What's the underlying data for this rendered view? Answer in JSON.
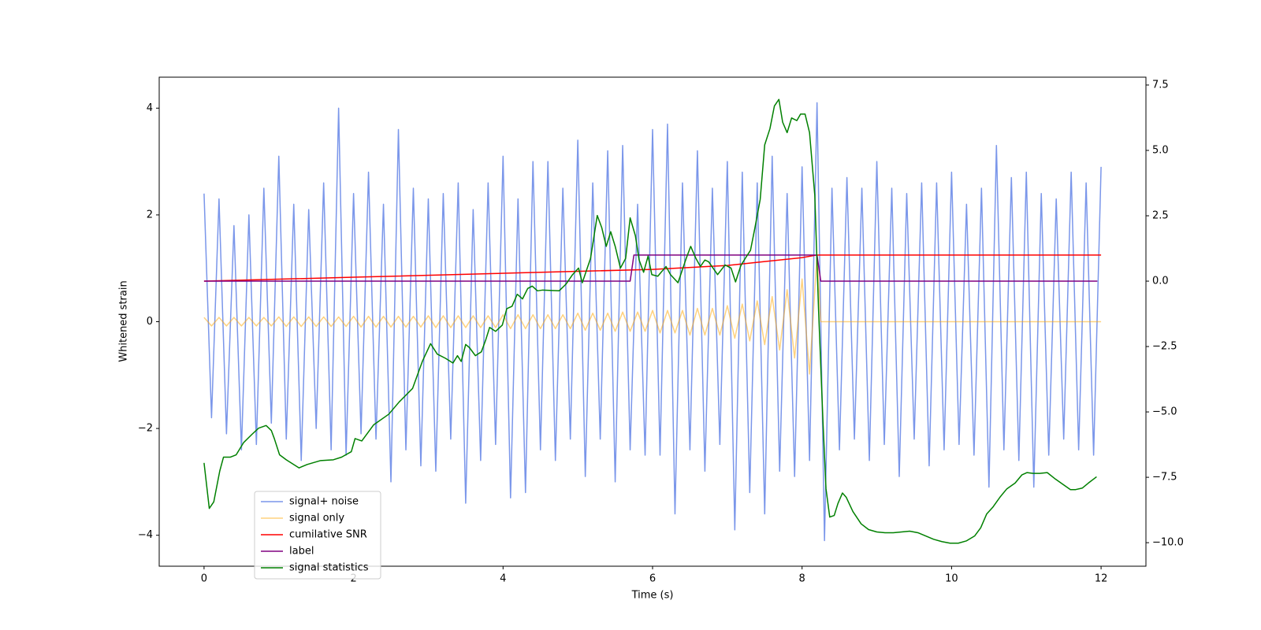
{
  "chart_data": {
    "type": "line",
    "xlabel": "Time (s)",
    "ylabel": "Whitened strain",
    "xlim": [
      -0.6,
      12.6
    ],
    "xticks": [
      0,
      2,
      4,
      6,
      8,
      10,
      12
    ],
    "ylim": [
      -4.58,
      4.58
    ],
    "yticks": [
      {
        "value": -4,
        "label": "−4"
      },
      {
        "value": -2,
        "label": "−2"
      },
      0,
      2,
      4
    ],
    "y2lim": [
      -10.9,
      7.8
    ],
    "y2ticks": [
      {
        "value": -10,
        "label": "−10.0"
      },
      {
        "value": -7.5,
        "label": "−7.5"
      },
      {
        "value": -5,
        "label": "−5.0"
      },
      {
        "value": -2.5,
        "label": "−2.5"
      },
      {
        "value": 0,
        "label": "0.0"
      },
      {
        "value": 2.5,
        "label": "2.5"
      },
      {
        "value": 5,
        "label": "5.0"
      },
      {
        "value": 7.5,
        "label": "7.5"
      }
    ],
    "legend": "lower left",
    "series": [
      {
        "name": "signal+ noise",
        "color": "#4169e1",
        "opacity": 0.7,
        "axis": "y",
        "x": [
          0,
          0.1,
          0.2,
          0.3,
          0.4,
          0.5,
          0.6,
          0.7,
          0.8,
          0.9,
          1,
          1.1,
          1.2,
          1.3,
          1.4,
          1.5,
          1.6,
          1.7,
          1.8,
          1.9,
          2,
          2.1,
          2.2,
          2.3,
          2.4,
          2.5,
          2.6,
          2.7,
          2.8,
          2.9,
          3,
          3.1,
          3.2,
          3.3,
          3.4,
          3.5,
          3.6,
          3.7,
          3.8,
          3.9,
          4,
          4.1,
          4.2,
          4.3,
          4.4,
          4.5,
          4.6,
          4.7,
          4.8,
          4.9,
          5,
          5.1,
          5.2,
          5.3,
          5.4,
          5.5,
          5.6,
          5.7,
          5.8,
          5.9,
          6,
          6.1,
          6.2,
          6.3,
          6.4,
          6.5,
          6.6,
          6.7,
          6.8,
          6.9,
          7,
          7.1,
          7.2,
          7.3,
          7.4,
          7.5,
          7.6,
          7.7,
          7.8,
          7.9,
          8,
          8.1,
          8.2,
          8.3,
          8.4,
          8.5,
          8.6,
          8.7,
          8.8,
          8.9,
          9,
          9.1,
          9.2,
          9.3,
          9.4,
          9.5,
          9.6,
          9.7,
          9.8,
          9.9,
          10,
          10.1,
          10.2,
          10.3,
          10.4,
          10.5,
          10.6,
          10.7,
          10.8,
          10.9,
          11,
          11.1,
          11.2,
          11.3,
          11.4,
          11.5,
          11.6,
          11.7,
          11.8,
          11.9,
          12
        ],
        "values": [
          2.4,
          -1.8,
          2.3,
          -2.1,
          1.8,
          -2.4,
          2.0,
          -2.3,
          2.5,
          -1.9,
          3.1,
          -2.2,
          2.2,
          -2.6,
          2.1,
          -2.0,
          2.6,
          -2.4,
          4.0,
          -2.5,
          2.4,
          -2.1,
          2.8,
          -2.2,
          2.2,
          -3.0,
          3.6,
          -2.4,
          2.5,
          -2.7,
          2.3,
          -2.8,
          2.4,
          -2.2,
          2.6,
          -3.4,
          2.1,
          -2.6,
          2.6,
          -2.3,
          3.1,
          -3.3,
          2.3,
          -3.2,
          3.0,
          -2.4,
          3.0,
          -2.6,
          2.5,
          -2.2,
          3.4,
          -2.9,
          2.6,
          -2.2,
          3.2,
          -3.0,
          3.3,
          -2.4,
          2.2,
          -2.5,
          3.6,
          -2.5,
          3.7,
          -3.6,
          2.6,
          -2.4,
          3.2,
          -2.8,
          2.5,
          -2.3,
          3.0,
          -3.9,
          2.8,
          -3.2,
          2.6,
          -3.6,
          3.1,
          -2.8,
          2.4,
          -2.9,
          2.9,
          -2.6,
          4.1,
          -4.1,
          2.5,
          -2.4,
          2.7,
          -2.2,
          2.5,
          -2.6,
          3.0,
          -2.3,
          2.5,
          -2.9,
          2.4,
          -2.2,
          2.6,
          -2.7,
          2.6,
          -2.4,
          2.8,
          -2.3,
          2.2,
          -2.5,
          2.5,
          -3.1,
          3.3,
          -2.4,
          2.7,
          -2.6,
          2.8,
          -3.1,
          2.4,
          -2.5,
          2.3,
          -2.2,
          2.8,
          -2.4,
          2.6,
          -2.5,
          2.9
        ]
      },
      {
        "name": "signal only",
        "color": "#ffa500",
        "opacity": 0.5,
        "axis": "y",
        "x": [
          0,
          0.1,
          0.2,
          0.3,
          0.4,
          0.5,
          0.6,
          0.7,
          0.8,
          0.9,
          1,
          1.1,
          1.2,
          1.3,
          1.4,
          1.5,
          1.6,
          1.7,
          1.8,
          1.9,
          2,
          2.1,
          2.2,
          2.3,
          2.4,
          2.5,
          2.6,
          2.7,
          2.8,
          2.9,
          3,
          3.1,
          3.2,
          3.3,
          3.4,
          3.5,
          3.6,
          3.7,
          3.8,
          3.9,
          4,
          4.1,
          4.2,
          4.3,
          4.4,
          4.5,
          4.6,
          4.7,
          4.8,
          4.9,
          5,
          5.1,
          5.2,
          5.3,
          5.4,
          5.5,
          5.6,
          5.7,
          5.8,
          5.9,
          6,
          6.1,
          6.2,
          6.3,
          6.4,
          6.5,
          6.6,
          6.7,
          6.8,
          6.9,
          7,
          7.1,
          7.2,
          7.3,
          7.4,
          7.5,
          7.6,
          7.7,
          7.8,
          7.9,
          8,
          8.1,
          8.2,
          8.25,
          12
        ],
        "values": [
          0.08,
          -0.08,
          0.08,
          -0.08,
          0.08,
          -0.08,
          0.08,
          -0.08,
          0.08,
          -0.08,
          0.09,
          -0.09,
          0.09,
          -0.09,
          0.09,
          -0.09,
          0.09,
          -0.09,
          0.09,
          -0.09,
          0.1,
          -0.1,
          0.1,
          -0.1,
          0.1,
          -0.1,
          0.1,
          -0.1,
          0.1,
          -0.1,
          0.11,
          -0.11,
          0.11,
          -0.11,
          0.11,
          -0.11,
          0.11,
          -0.11,
          0.11,
          -0.11,
          0.13,
          -0.13,
          0.13,
          -0.13,
          0.13,
          -0.13,
          0.13,
          -0.13,
          0.13,
          -0.13,
          0.16,
          -0.16,
          0.16,
          -0.16,
          0.16,
          -0.18,
          0.18,
          -0.18,
          0.18,
          -0.18,
          0.21,
          -0.21,
          0.21,
          -0.21,
          0.21,
          -0.25,
          0.25,
          -0.25,
          0.25,
          -0.25,
          0.3,
          -0.31,
          0.33,
          -0.36,
          0.39,
          -0.43,
          0.47,
          -0.53,
          0.6,
          -0.68,
          0.8,
          -0.98,
          1.25,
          0,
          0
        ]
      },
      {
        "name": "cumilative SNR",
        "color": "#ff0000",
        "opacity": 1,
        "axis": "y2",
        "x": [
          0,
          2,
          4,
          6,
          7,
          7.5,
          8,
          8.2,
          12
        ],
        "values": [
          0,
          0.15,
          0.3,
          0.45,
          0.6,
          0.75,
          0.9,
          1.0,
          1.0
        ]
      },
      {
        "name": "label",
        "color": "#800080",
        "opacity": 1,
        "axis": "y2",
        "x": [
          0,
          5.7,
          5.75,
          8.2,
          8.25,
          11.95
        ],
        "values": [
          0,
          0,
          1,
          1,
          0,
          0
        ]
      },
      {
        "name": "signal statistics",
        "color": "#008000",
        "opacity": 1,
        "axis": "y2",
        "x": [
          0,
          0.07,
          0.13,
          0.21,
          0.26,
          0.35,
          0.43,
          0.53,
          0.64,
          0.73,
          0.83,
          0.9,
          0.94,
          1.01,
          1.1,
          1.27,
          1.38,
          1.56,
          1.73,
          1.84,
          1.97,
          2.02,
          2.11,
          2.27,
          2.47,
          2.61,
          2.79,
          2.92,
          3.03,
          3.12,
          3.23,
          3.33,
          3.39,
          3.44,
          3.5,
          3.55,
          3.63,
          3.71,
          3.77,
          3.82,
          3.9,
          3.99,
          4.05,
          4.12,
          4.19,
          4.26,
          4.33,
          4.39,
          4.46,
          4.53,
          4.75,
          4.84,
          4.93,
          5.01,
          5.06,
          5.17,
          5.26,
          5.32,
          5.38,
          5.44,
          5.5,
          5.57,
          5.64,
          5.7,
          5.77,
          5.82,
          5.88,
          5.94,
          5.99,
          6.07,
          6.18,
          6.24,
          6.34,
          6.45,
          6.51,
          6.58,
          6.64,
          6.7,
          6.75,
          6.87,
          6.97,
          7.05,
          7.11,
          7.18,
          7.24,
          7.31,
          7.37,
          7.44,
          7.5,
          7.57,
          7.63,
          7.69,
          7.74,
          7.8,
          7.86,
          7.93,
          7.98,
          8.04,
          8.1,
          8.17,
          8.22,
          8.28,
          8.32,
          8.37,
          8.43,
          8.48,
          8.54,
          8.59,
          8.68,
          8.79,
          8.89,
          9.0,
          9.11,
          9.22,
          9.33,
          9.44,
          9.55,
          9.65,
          9.76,
          9.87,
          9.98,
          10.09,
          10.2,
          10.31,
          10.39,
          10.47,
          10.55,
          10.65,
          10.74,
          10.85,
          10.94,
          11.01,
          11.09,
          11.18,
          11.28,
          11.39,
          11.5,
          11.59,
          11.66,
          11.75,
          11.83,
          11.94
        ],
        "values": [
          -6.95,
          -8.69,
          -8.44,
          -7.26,
          -6.73,
          -6.73,
          -6.64,
          -6.17,
          -5.86,
          -5.62,
          -5.52,
          -5.71,
          -6.02,
          -6.64,
          -6.83,
          -7.14,
          -7.01,
          -6.86,
          -6.83,
          -6.73,
          -6.52,
          -6.02,
          -6.11,
          -5.49,
          -5.09,
          -4.62,
          -4.1,
          -3.07,
          -2.39,
          -2.79,
          -2.95,
          -3.13,
          -2.85,
          -3.07,
          -2.42,
          -2.54,
          -2.85,
          -2.7,
          -2.23,
          -1.77,
          -1.92,
          -1.68,
          -1.05,
          -0.96,
          -0.5,
          -0.68,
          -0.28,
          -0.19,
          -0.37,
          -0.34,
          -0.37,
          -0.12,
          0.25,
          0.5,
          -0.06,
          0.87,
          2.51,
          2.05,
          1.33,
          1.89,
          1.33,
          0.5,
          0.87,
          2.42,
          1.74,
          0.81,
          0.34,
          0.96,
          0.25,
          0.19,
          0.56,
          0.25,
          -0.06,
          0.87,
          1.33,
          0.87,
          0.56,
          0.81,
          0.74,
          0.25,
          0.62,
          0.5,
          -0.03,
          0.59,
          0.87,
          1.18,
          2.05,
          3.13,
          5.21,
          5.83,
          6.7,
          6.95,
          6.08,
          5.68,
          6.24,
          6.14,
          6.39,
          6.39,
          5.68,
          3.29,
          -1.05,
          -5.4,
          -7.94,
          -9.02,
          -8.96,
          -8.5,
          -8.1,
          -8.26,
          -8.81,
          -9.28,
          -9.5,
          -9.59,
          -9.62,
          -9.62,
          -9.59,
          -9.56,
          -9.62,
          -9.74,
          -9.87,
          -9.96,
          -10.02,
          -10.02,
          -9.93,
          -9.74,
          -9.43,
          -8.9,
          -8.65,
          -8.25,
          -7.94,
          -7.72,
          -7.41,
          -7.32,
          -7.35,
          -7.35,
          -7.32,
          -7.57,
          -7.79,
          -7.97,
          -7.97,
          -7.91,
          -7.72,
          -7.48
        ]
      }
    ]
  }
}
